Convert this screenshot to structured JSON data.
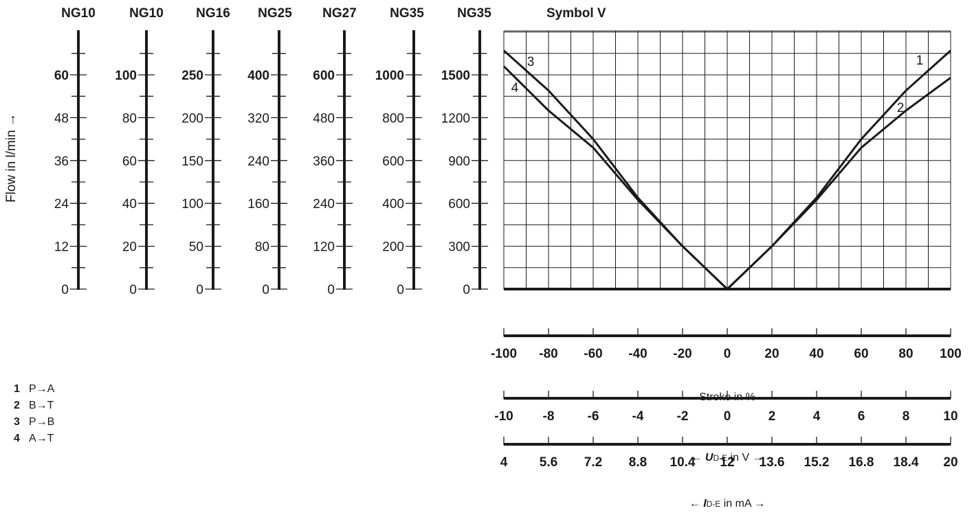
{
  "chart_data": {
    "type": "line",
    "title": "Symbol V",
    "ylabel": "Flow in l/min →",
    "scales": [
      {
        "name": "NG10",
        "ticks": [
          "0",
          "12",
          "24",
          "36",
          "48",
          "60"
        ]
      },
      {
        "name": "NG10",
        "ticks": [
          "0",
          "20",
          "40",
          "60",
          "80",
          "100"
        ]
      },
      {
        "name": "NG16",
        "ticks": [
          "0",
          "50",
          "100",
          "150",
          "200",
          "250"
        ]
      },
      {
        "name": "NG25",
        "ticks": [
          "0",
          "80",
          "160",
          "240",
          "320",
          "400"
        ]
      },
      {
        "name": "NG27",
        "ticks": [
          "0",
          "120",
          "240",
          "360",
          "480",
          "600"
        ]
      },
      {
        "name": "NG35",
        "ticks": [
          "0",
          "200",
          "400",
          "600",
          "800",
          "1000"
        ]
      },
      {
        "name": "NG35",
        "ticks": [
          "0",
          "300",
          "600",
          "900",
          "1200",
          "1500"
        ]
      }
    ],
    "x_axes": [
      {
        "label": "← Stroke in % →",
        "ticks": [
          "-100",
          "-80",
          "-60",
          "-40",
          "-20",
          "0",
          "20",
          "40",
          "60",
          "80",
          "100"
        ]
      },
      {
        "label_prefix": "← ",
        "label_var": "U",
        "label_sub": "D-E",
        "label_suffix": " in V →",
        "ticks": [
          "-10",
          "-8",
          "-6",
          "-4",
          "-2",
          "0",
          "2",
          "4",
          "6",
          "8",
          "10"
        ]
      },
      {
        "label_prefix": "← ",
        "label_var": "I",
        "label_sub": "D-E",
        "label_suffix": " in mA →",
        "ticks": [
          "4",
          "5.6",
          "7.2",
          "8.8",
          "10.4",
          "12",
          "13.6",
          "15.2",
          "16.8",
          "18.4",
          "20"
        ]
      }
    ],
    "xlim": [
      -100,
      100
    ],
    "ylim": [
      0,
      1725
    ],
    "grid": true,
    "series": [
      {
        "name": "1",
        "x": [
          0,
          20,
          40,
          60,
          80,
          100
        ],
        "y": [
          0,
          300,
          640,
          1050,
          1390,
          1670
        ]
      },
      {
        "name": "2",
        "x": [
          0,
          20,
          40,
          60,
          80,
          100
        ],
        "y": [
          0,
          300,
          625,
          990,
          1250,
          1480
        ]
      },
      {
        "name": "3",
        "x": [
          0,
          -20,
          -40,
          -60,
          -80,
          -100
        ],
        "y": [
          0,
          300,
          640,
          1050,
          1390,
          1670
        ]
      },
      {
        "name": "4",
        "x": [
          0,
          -20,
          -40,
          -60,
          -80,
          -100
        ],
        "y": [
          0,
          300,
          625,
          990,
          1250,
          1560
        ]
      }
    ]
  },
  "legend": [
    {
      "num": "1",
      "text": "P→A"
    },
    {
      "num": "2",
      "text": "B→T"
    },
    {
      "num": "3",
      "text": "P→B"
    },
    {
      "num": "4",
      "text": "A→T"
    }
  ]
}
